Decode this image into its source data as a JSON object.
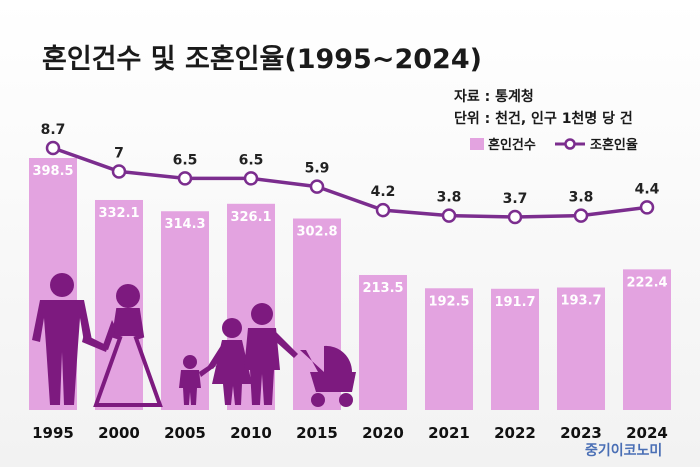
{
  "header": {
    "title": "혼인건수 및 조혼인율(1995~2024)",
    "source": "자료 : 통계청",
    "unit": "단위 : 천건, 인구 1천명 당 건"
  },
  "legend": {
    "bar_label": "혼인건수",
    "line_label": "조혼인율"
  },
  "brand": "중기이코노미",
  "colors": {
    "bar": "#e3a3e0",
    "line": "#7b2d8e",
    "silhouette": "#7d1a7f"
  },
  "chart_data": {
    "type": "bar",
    "title": "혼인건수 및 조혼인율(1995~2024)",
    "categories": [
      "1995",
      "2000",
      "2005",
      "2010",
      "2015",
      "2020",
      "2021",
      "2022",
      "2023",
      "2024"
    ],
    "series": [
      {
        "name": "혼인건수",
        "type": "bar",
        "unit": "천건",
        "values": [
          398.5,
          332.1,
          314.3,
          326.1,
          302.8,
          213.5,
          192.5,
          191.7,
          193.7,
          222.4
        ]
      },
      {
        "name": "조혼인율",
        "type": "line",
        "unit": "인구 1천명 당 건",
        "values": [
          8.7,
          7,
          6.5,
          6.5,
          5.9,
          4.2,
          3.8,
          3.7,
          3.8,
          4.4
        ],
        "labels": [
          "8.7",
          "7",
          "6.5",
          "6.5",
          "5.9",
          "4.2",
          "3.8",
          "3.7",
          "3.8",
          "4.4"
        ]
      }
    ],
    "bar_labels": [
      "398.5",
      "332.1",
      "314.3",
      "326.1",
      "302.8",
      "213.5",
      "192.5",
      "191.7",
      "193.7",
      "222.4"
    ],
    "bar_ylim": [
      0,
      420
    ],
    "line_ylim": [
      2.8,
      9.0
    ],
    "grid": false,
    "legend_position": "top-right"
  }
}
